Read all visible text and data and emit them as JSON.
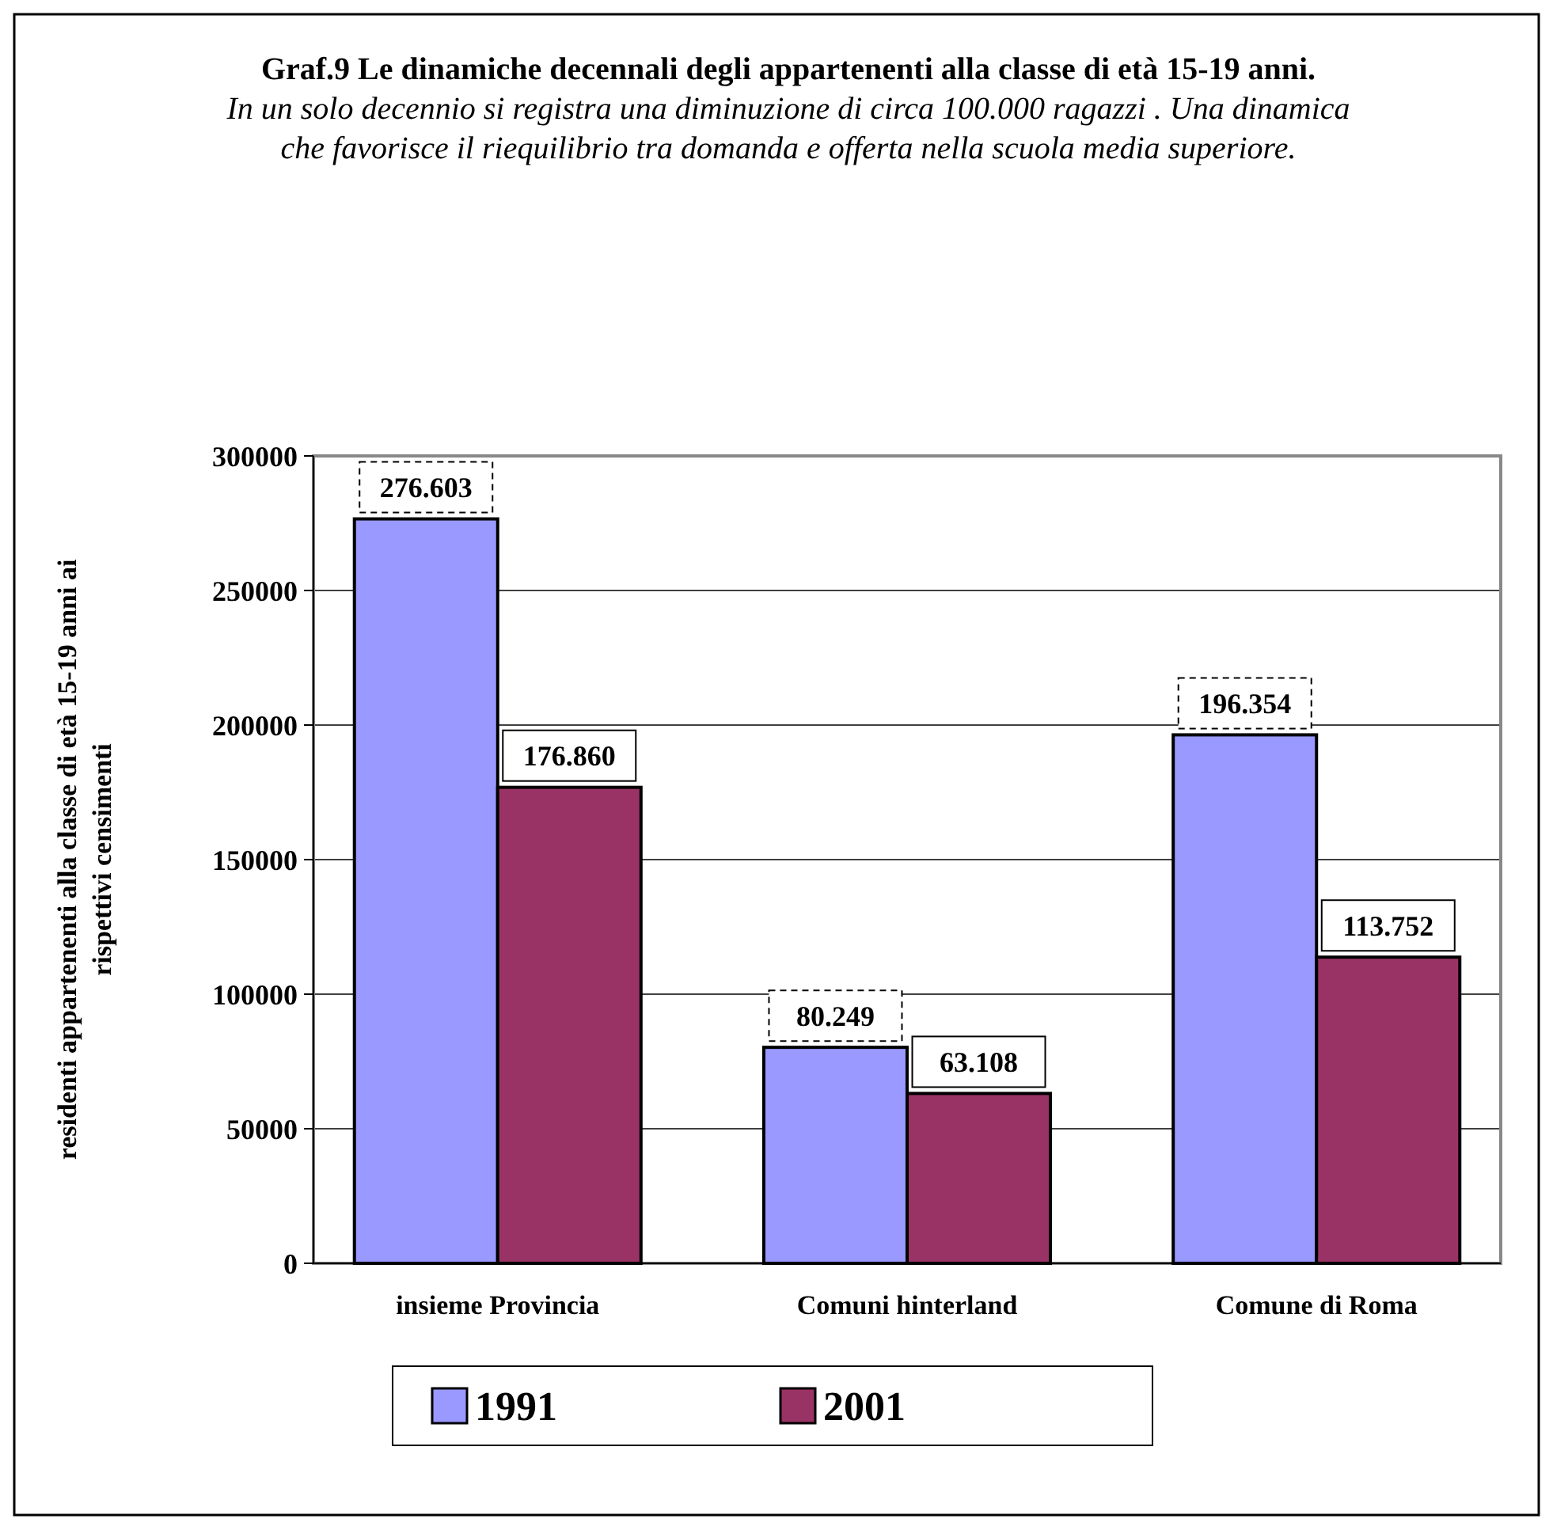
{
  "chart_data": {
    "type": "bar",
    "title": "Graf.9 Le dinamiche decennali degli appartenenti alla classe di età 15-19 anni.",
    "subtitle": "In un solo decennio si registra una diminuzione di circa 100.000 ragazzi . Una dinamica che favorisce il riequilibrio tra domanda e offerta nella scuola media superiore.",
    "ylabel": "residenti appartenenti alla classe di età 15-19 anni ai rispettivi censimenti",
    "categories": [
      "insieme Provincia",
      "Comuni hinterland",
      "Comune di Roma"
    ],
    "series": [
      {
        "name": "1991",
        "color": "#9999ff",
        "values": [
          276603,
          80249,
          196354
        ],
        "value_labels": [
          "276.603",
          "80.249",
          "196.354"
        ]
      },
      {
        "name": "2001",
        "color": "#993366",
        "values": [
          176860,
          63108,
          113752
        ],
        "value_labels": [
          "176.860",
          "63.108",
          "113.752"
        ]
      }
    ],
    "ylim": [
      0,
      300000
    ],
    "yticks": [
      0,
      50000,
      100000,
      150000,
      200000,
      250000,
      300000
    ],
    "grid": "y",
    "legend": "bottom"
  }
}
